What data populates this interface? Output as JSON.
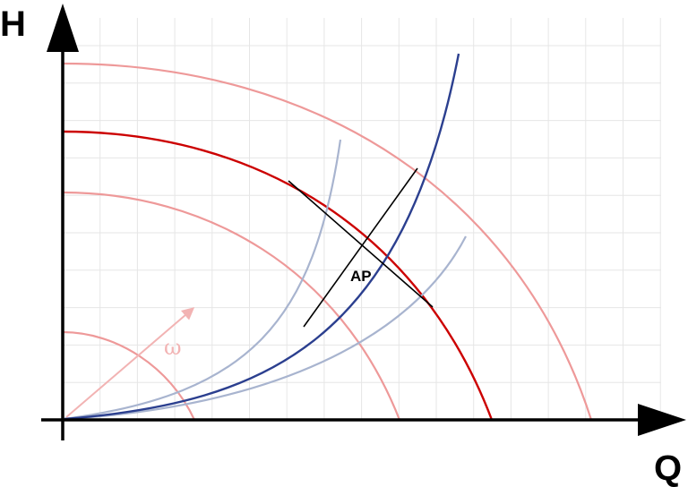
{
  "axes": {
    "y_label": "H",
    "x_label": "Q"
  },
  "operating_point": {
    "label": "AP"
  },
  "speed_arrow": {
    "label": "ω"
  },
  "colors": {
    "grid": "#e6e6e6",
    "axis": "#000000",
    "pump_curve_main": "#cc0000",
    "pump_curve_faint": "#ee9999",
    "system_curve_main": "#2b3f8f",
    "system_curve_faint": "#a8b4cf",
    "tangent_lines": "#000000"
  }
}
